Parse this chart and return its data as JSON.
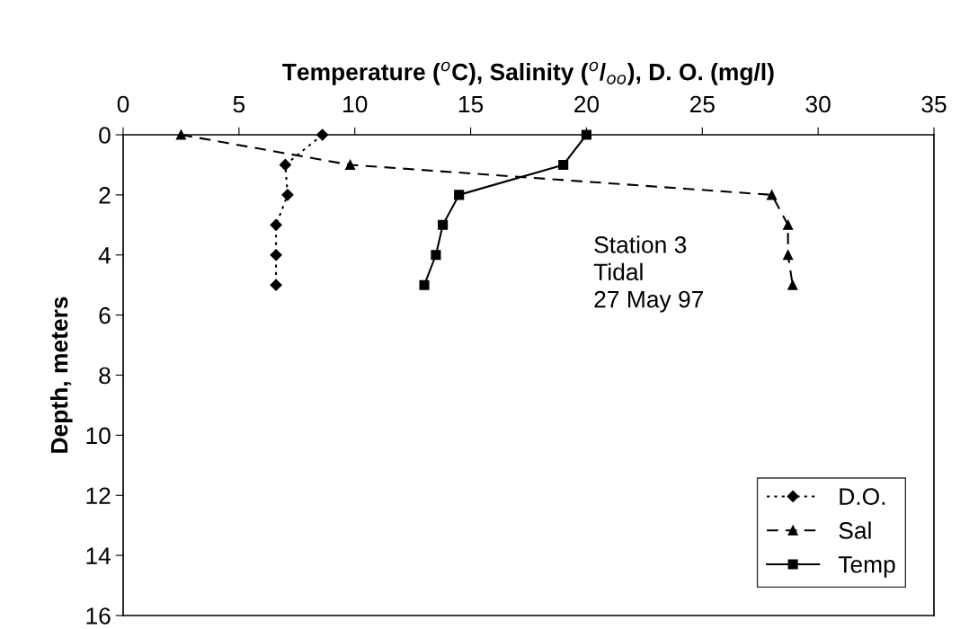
{
  "chart_data": {
    "type": "line",
    "xlabel": "Temperature ($^{o}$C), Salinity ($^{o}$/$_{oo}$), D. O. (mg/l)",
    "ylabel": "Depth, meters",
    "xlim": [
      0,
      35
    ],
    "xticks": [
      0,
      5,
      10,
      15,
      20,
      25,
      30,
      35
    ],
    "ylim": [
      16,
      0
    ],
    "yticks": [
      0,
      2,
      4,
      6,
      8,
      10,
      12,
      14,
      16
    ],
    "grid": false,
    "legend": "bottom right",
    "annotations": [
      "Station 3\nTidal\n27 May 97"
    ],
    "series": [
      {
        "name": "D.O.",
        "color": "#000000",
        "marker": "diamond",
        "line_style": "dotted",
        "x": [
          8.6,
          7.0,
          7.1,
          6.6,
          6.6,
          6.6
        ],
        "values": [
          0,
          1,
          2,
          3,
          4,
          5
        ]
      },
      {
        "name": "Sal",
        "color": "#000000",
        "marker": "triangle",
        "line_style": "dashed",
        "x": [
          2.5,
          9.8,
          28.0,
          28.7,
          28.7,
          28.9
        ],
        "values": [
          0,
          1,
          2,
          3,
          4,
          5
        ]
      },
      {
        "name": "Temp",
        "color": "#000000",
        "marker": "square",
        "line_style": "solid",
        "x": [
          20.0,
          19.0,
          14.5,
          13.8,
          13.5,
          13.0
        ],
        "values": [
          0,
          1,
          2,
          3,
          4,
          5
        ]
      }
    ]
  }
}
